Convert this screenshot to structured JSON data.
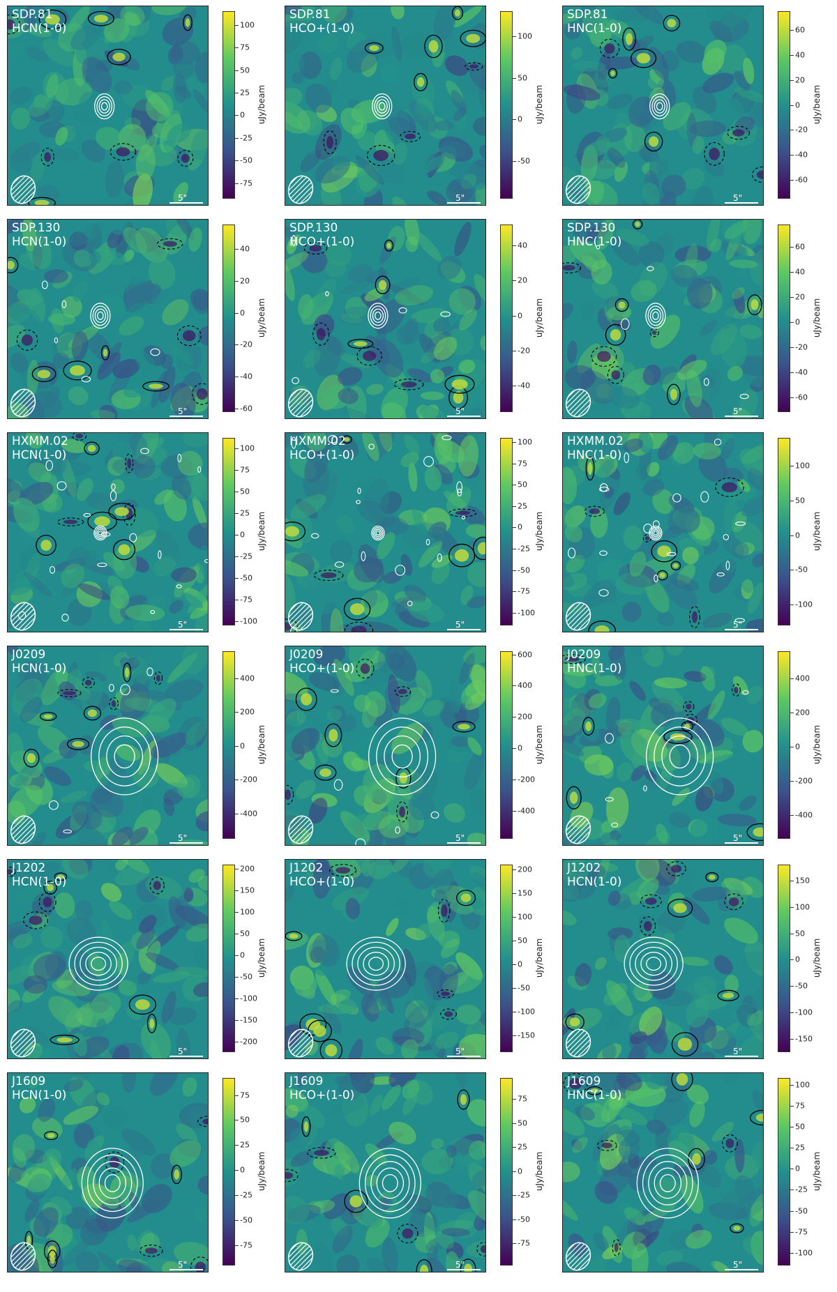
{
  "figure": {
    "colorbar_unit": "uJy/beam",
    "scale_bar_label": "5\"",
    "colormap": [
      "#440154",
      "#3b528b",
      "#21918c",
      "#5ec962",
      "#fde725"
    ],
    "contour_colors": {
      "continuum": "#ffffff",
      "positive": "#000000",
      "negative": "#000000"
    },
    "rows": [
      {
        "source": "SDP.81",
        "panels": [
          {
            "line": "HCN(1-0)",
            "ticks": [
              100,
              75,
              50,
              25,
              0,
              -25,
              -50,
              -75
            ],
            "range": [
              -92,
              115
            ]
          },
          {
            "line": "HCO+(1-0)",
            "ticks": [
              100,
              50,
              0,
              -50
            ],
            "range": [
              -95,
              130
            ]
          },
          {
            "line": "HNC(1-0)",
            "ticks": [
              60,
              40,
              20,
              0,
              -20,
              -40,
              -60
            ],
            "range": [
              -75,
              75
            ]
          }
        ]
      },
      {
        "source": "SDP.130",
        "panels": [
          {
            "line": "HCN(1-0)",
            "ticks": [
              40,
              20,
              0,
              -20,
              -40,
              -60
            ],
            "range": [
              -62,
              55
            ]
          },
          {
            "line": "HCO+(1-0)",
            "ticks": [
              40,
              20,
              0,
              -20,
              -40
            ],
            "range": [
              -55,
              52
            ]
          },
          {
            "line": "HNC(1-0)",
            "ticks": [
              60,
              40,
              20,
              0,
              -20,
              -40,
              -60
            ],
            "range": [
              -72,
              78
            ]
          }
        ]
      },
      {
        "source": "HXMM.02",
        "panels": [
          {
            "line": "HCN(1-0)",
            "ticks": [
              100,
              75,
              50,
              25,
              0,
              -25,
              -50,
              -75,
              -100
            ],
            "range": [
              -105,
              112
            ]
          },
          {
            "line": "HCO+(1-0)",
            "ticks": [
              100,
              75,
              50,
              25,
              0,
              -25,
              -50,
              -75,
              -100
            ],
            "range": [
              -115,
              105
            ]
          },
          {
            "line": "HNC(1-0)",
            "ticks": [
              100,
              50,
              0,
              -50,
              -100
            ],
            "range": [
              -130,
              140
            ]
          }
        ]
      },
      {
        "source": "J0209",
        "panels": [
          {
            "line": "HCN(1-0)",
            "ticks": [
              400,
              200,
              0,
              -200,
              -400
            ],
            "range": [
              -550,
              560
            ]
          },
          {
            "line": "HCO+(1-0)",
            "ticks": [
              600,
              400,
              200,
              0,
              -200,
              -400
            ],
            "range": [
              -580,
              620
            ]
          },
          {
            "line": "HNC(1-0)",
            "ticks": [
              400,
              200,
              0,
              -200,
              -400
            ],
            "range": [
              -540,
              560
            ]
          }
        ]
      },
      {
        "source": "J1202",
        "panels": [
          {
            "line": "HCN(1-0)",
            "ticks": [
              200,
              150,
              100,
              50,
              0,
              -50,
              -100,
              -150,
              -200
            ],
            "range": [
              -225,
              210
            ]
          },
          {
            "line": "HCO+(1-0)",
            "ticks": [
              200,
              150,
              100,
              50,
              0,
              -50,
              -100,
              -150
            ],
            "range": [
              -185,
              210
            ]
          },
          {
            "line": "HCN(1-0)",
            "ticks": [
              150,
              100,
              50,
              0,
              -50,
              -100,
              -150
            ],
            "range": [
              -175,
              180
            ]
          }
        ]
      },
      {
        "source": "J1609",
        "panels": [
          {
            "line": "HCN(1-0)",
            "ticks": [
              75,
              50,
              25,
              0,
              -25,
              -50,
              -75
            ],
            "range": [
              -95,
              92
            ]
          },
          {
            "line": "HCO+(1-0)",
            "ticks": [
              75,
              50,
              25,
              0,
              -25,
              -50,
              -75
            ],
            "range": [
              -98,
              97
            ]
          },
          {
            "line": "HNC(1-0)",
            "ticks": [
              100,
              75,
              50,
              25,
              0,
              -25,
              -50,
              -75,
              -100
            ],
            "range": [
              -115,
              108
            ]
          }
        ]
      }
    ]
  }
}
